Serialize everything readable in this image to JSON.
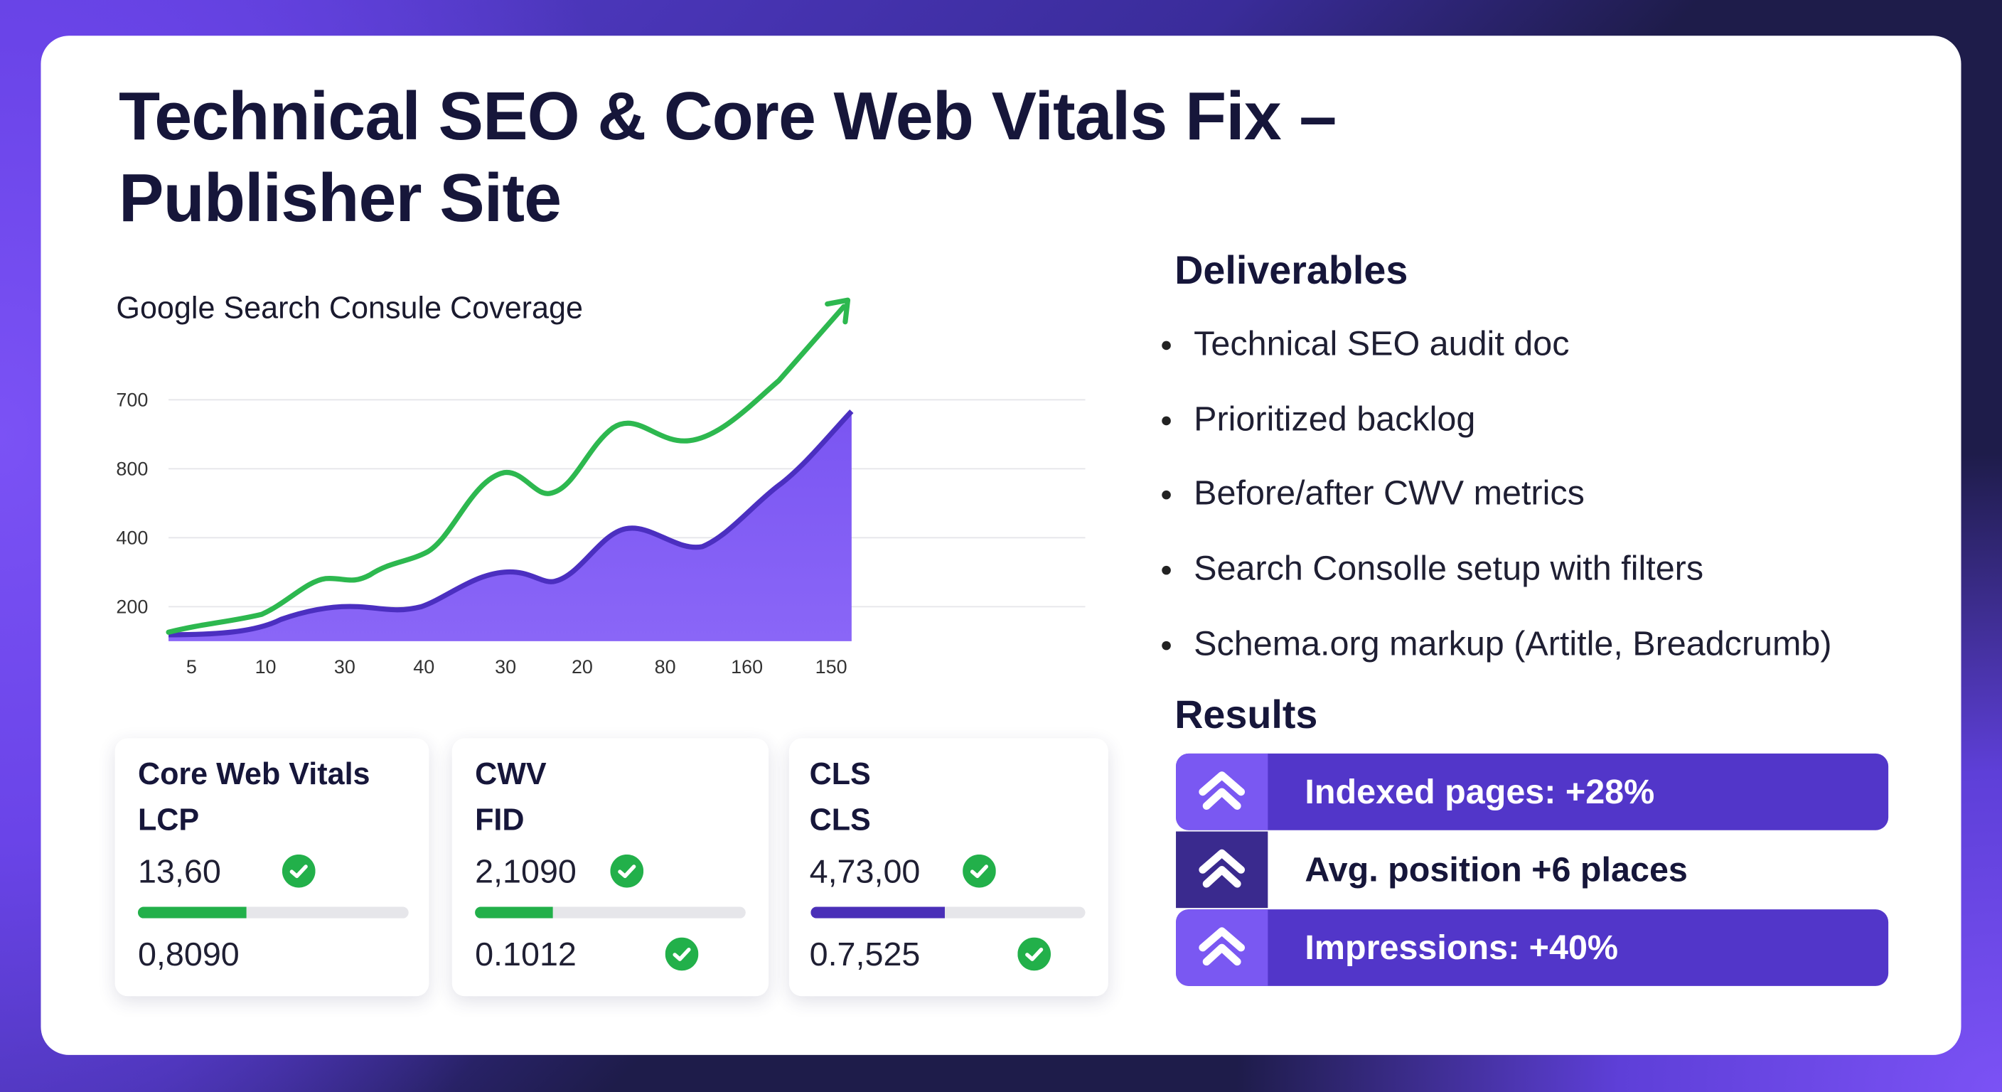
{
  "header": {
    "title_lines": [
      "Technical SEO & Core Web Vitals Fix –",
      "Publisher Site"
    ]
  },
  "coverage": {
    "title": "Google Search Consule Coverage",
    "y_labels": [
      "700",
      "800",
      "400",
      "200"
    ],
    "x_labels": [
      "5",
      "10",
      "30",
      "40",
      "30",
      "20",
      "80",
      "160",
      "150"
    ]
  },
  "metrics": [
    {
      "heading": "Core Web Vitals",
      "label": "LCP",
      "value": "13,60",
      "secondary": "0,8090"
    },
    {
      "heading": "CWV",
      "label": "FID",
      "value": "2,1090",
      "secondary": "0.1012"
    },
    {
      "heading": "CLS",
      "label": "CLS",
      "value": "4,73,00",
      "secondary": "0.7,525"
    }
  ],
  "deliverables": {
    "heading": "Deliverables",
    "items": [
      "Technical SEO audit doc",
      "Prioritized backlog",
      "Before/after CWV metrics",
      "Search Consolle setup with filters",
      "Schema.org markup (Artitle, Breadcrumb)"
    ]
  },
  "results": {
    "heading": "Results",
    "items": [
      "Indexed pages: +28%",
      "Avg. position +6 places",
      "Impressions: +40%"
    ]
  }
}
